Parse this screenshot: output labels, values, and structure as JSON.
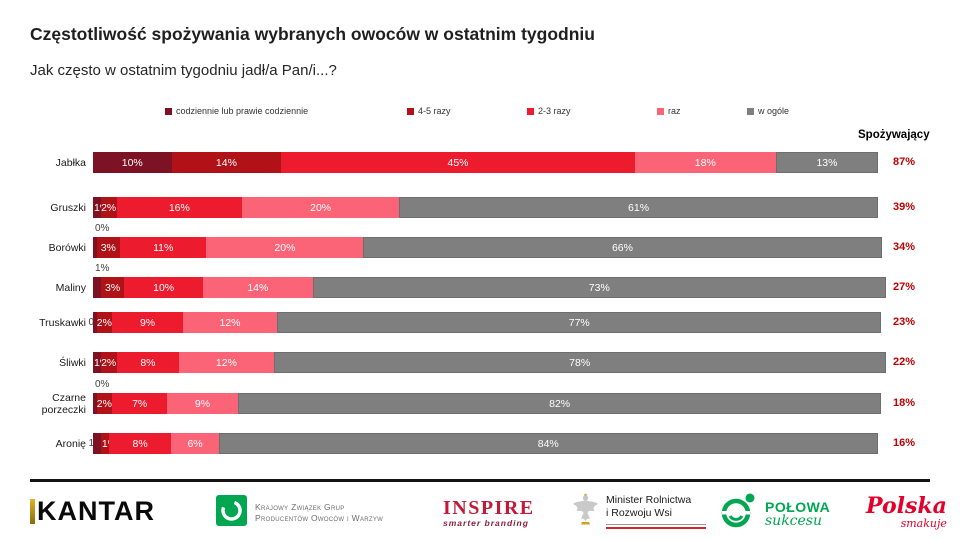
{
  "title": "Częstotliwość spożywania wybranych owoców w ostatnim tygodniu",
  "subtitle": "Jak często w ostatnim tygodniu jadł/a Pan/i...?",
  "consumers_header": "Spożywający",
  "colors": {
    "codziennie": "#7D1224",
    "razy45": "#B01218",
    "razy23": "#EC1B2E",
    "raz": "#FB6376",
    "w_ogole": "#7F7F7F",
    "consumers_text": "#C00000"
  },
  "legend": [
    {
      "label": "codziennie lub prawie codziennie",
      "color": "#7D1224"
    },
    {
      "label": "4-5 razy",
      "color": "#B01218"
    },
    {
      "label": "2-3 razy",
      "color": "#EC1B2E"
    },
    {
      "label": "raz",
      "color": "#FB6376"
    },
    {
      "label": "w ogóle",
      "color": "#7F7F7F"
    }
  ],
  "chart_data": {
    "type": "bar",
    "orientation": "horizontal",
    "stacked": true,
    "xlim": [
      0,
      100
    ],
    "series": [
      "codziennie lub prawie codziennie",
      "4-5 razy",
      "2-3 razy",
      "raz",
      "w ogóle"
    ],
    "colors": [
      "#7D1224",
      "#B01218",
      "#EC1B2E",
      "#FB6376",
      "#7F7F7F"
    ],
    "categories": [
      "Jabłka",
      "Gruszki",
      "Borówki",
      "Maliny",
      "Truskawki",
      "Śliwki",
      "Czarne porzeczki",
      "Aronię"
    ],
    "rows": [
      {
        "category": "Jabłka",
        "values": [
          10,
          14,
          45,
          18,
          13
        ],
        "labels": [
          "10%",
          "14%",
          "45%",
          "18%",
          "13%"
        ],
        "label_pos": [
          "in",
          "in",
          "in",
          "in",
          "in"
        ],
        "consumers": "87%"
      },
      {
        "category": "Gruszki",
        "values": [
          1,
          2,
          16,
          20,
          61
        ],
        "labels": [
          "1%",
          "2%",
          "16%",
          "20%",
          "61%"
        ],
        "label_pos": [
          "in",
          "in",
          "in",
          "in",
          "in"
        ],
        "consumers": "39%"
      },
      {
        "category": "Borówki",
        "values": [
          0,
          3,
          11,
          20,
          66
        ],
        "labels": [
          "0%",
          "3%",
          "11%",
          "20%",
          "66%"
        ],
        "label_pos": [
          "above",
          "in",
          "in",
          "in",
          "in"
        ],
        "consumers": "34%"
      },
      {
        "category": "Maliny",
        "values": [
          1,
          3,
          10,
          14,
          73
        ],
        "labels": [
          "1%",
          "3%",
          "10%",
          "14%",
          "73%"
        ],
        "label_pos": [
          "above",
          "in",
          "in",
          "in",
          "in"
        ],
        "consumers": "27%"
      },
      {
        "category": "Truskawki",
        "values": [
          0,
          2,
          9,
          12,
          77
        ],
        "labels": [
          "0%",
          "2%",
          "9%",
          "12%",
          "77%"
        ],
        "label_pos": [
          "left",
          "in",
          "in",
          "in",
          "in"
        ],
        "consumers": "23%"
      },
      {
        "category": "Śliwki",
        "values": [
          1,
          2,
          8,
          12,
          78
        ],
        "labels": [
          "1%",
          "2%",
          "8%",
          "12%",
          "78%"
        ],
        "label_pos": [
          "in",
          "in",
          "in",
          "in",
          "in"
        ],
        "consumers": "22%"
      },
      {
        "category": "Czarne\nporzeczki",
        "values": [
          0,
          2,
          7,
          9,
          82
        ],
        "labels": [
          "0%",
          "2%",
          "7%",
          "9%",
          "82%"
        ],
        "label_pos": [
          "above",
          "in",
          "in",
          "in",
          "in"
        ],
        "consumers": "18%"
      },
      {
        "category": "Aronię",
        "values": [
          1,
          1,
          8,
          6,
          84
        ],
        "labels": [
          "1%",
          "1%",
          "8%",
          "6%",
          "84%"
        ],
        "label_pos": [
          "left",
          "in",
          "in",
          "in",
          "in"
        ],
        "consumers": "16%"
      }
    ]
  },
  "footer": {
    "kantar": "KANTAR",
    "kzg": {
      "line1": "Krajowy Związek Grup",
      "line2": "Producentów Owoców i Warzyw"
    },
    "inspire": {
      "name": "INSPIRE",
      "tagline": "smarter branding"
    },
    "minister": {
      "line1": "Minister Rolnictwa",
      "line2": "i Rozwoju Wsi"
    },
    "polowa": {
      "line1": "POŁOWA",
      "line2": "sukcesu"
    },
    "polska": {
      "line1": "Polska",
      "line2": "smakuje"
    }
  }
}
